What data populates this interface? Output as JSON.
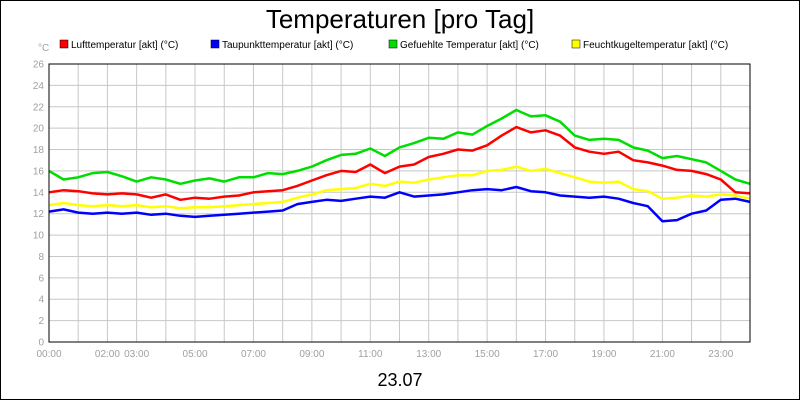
{
  "chart_data": {
    "type": "line",
    "title": "Temperaturen [pro Tag]",
    "ylabel": "°C",
    "xlabel": "23.07",
    "ylim": [
      0,
      26
    ],
    "yticks": [
      0,
      2,
      4,
      6,
      8,
      10,
      12,
      14,
      16,
      18,
      20,
      22,
      24,
      26
    ],
    "xlim": [
      0,
      24
    ],
    "xticks": [
      {
        "v": 0,
        "label": "00:00"
      },
      {
        "v": 2,
        "label": "02:00"
      },
      {
        "v": 3,
        "label": "03:00"
      },
      {
        "v": 5,
        "label": "05:00"
      },
      {
        "v": 7,
        "label": "07:00"
      },
      {
        "v": 9,
        "label": "09:00"
      },
      {
        "v": 11,
        "label": "11:00"
      },
      {
        "v": 13,
        "label": "13:00"
      },
      {
        "v": 15,
        "label": "15:00"
      },
      {
        "v": 17,
        "label": "17:00"
      },
      {
        "v": 19,
        "label": "19:00"
      },
      {
        "v": 21,
        "label": "21:00"
      },
      {
        "v": 23,
        "label": "23:00"
      }
    ],
    "grid": true,
    "legend": "top",
    "series": [
      {
        "name": "Lufttemperatur [akt] (°C)",
        "color": "#ff0000",
        "x": [
          0,
          0.5,
          1,
          1.5,
          2,
          2.5,
          3,
          3.5,
          4,
          4.5,
          5,
          5.5,
          6,
          6.5,
          7,
          7.5,
          8,
          8.5,
          9,
          9.5,
          10,
          10.5,
          11,
          11.5,
          12,
          12.5,
          13,
          13.5,
          14,
          14.5,
          15,
          15.5,
          16,
          16.5,
          17,
          17.5,
          18,
          18.5,
          19,
          19.5,
          20,
          20.5,
          21,
          21.5,
          22,
          22.5,
          23,
          23.5,
          24
        ],
        "y": [
          14.0,
          14.2,
          14.1,
          13.9,
          13.8,
          13.9,
          13.8,
          13.5,
          13.8,
          13.3,
          13.5,
          13.4,
          13.6,
          13.7,
          14.0,
          14.1,
          14.2,
          14.6,
          15.1,
          15.6,
          16.0,
          15.9,
          16.6,
          15.8,
          16.4,
          16.6,
          17.3,
          17.6,
          18.0,
          17.9,
          18.4,
          19.3,
          20.1,
          19.6,
          19.8,
          19.3,
          18.2,
          17.8,
          17.6,
          17.8,
          17.0,
          16.8,
          16.5,
          16.1,
          16.0,
          15.7,
          15.2,
          14.0,
          13.9
        ]
      },
      {
        "name": "Taupunkttemperatur [akt] (°C)",
        "color": "#0000ff",
        "x": [
          0,
          0.5,
          1,
          1.5,
          2,
          2.5,
          3,
          3.5,
          4,
          4.5,
          5,
          5.5,
          6,
          6.5,
          7,
          7.5,
          8,
          8.5,
          9,
          9.5,
          10,
          10.5,
          11,
          11.5,
          12,
          12.5,
          13,
          13.5,
          14,
          14.5,
          15,
          15.5,
          16,
          16.5,
          17,
          17.5,
          18,
          18.5,
          19,
          19.5,
          20,
          20.5,
          21,
          21.5,
          22,
          22.5,
          23,
          23.5,
          24
        ],
        "y": [
          12.2,
          12.4,
          12.1,
          12.0,
          12.1,
          12.0,
          12.1,
          11.9,
          12.0,
          11.8,
          11.7,
          11.8,
          11.9,
          12.0,
          12.1,
          12.2,
          12.3,
          12.9,
          13.1,
          13.3,
          13.2,
          13.4,
          13.6,
          13.5,
          14.0,
          13.6,
          13.7,
          13.8,
          14.0,
          14.2,
          14.3,
          14.2,
          14.5,
          14.1,
          14.0,
          13.7,
          13.6,
          13.5,
          13.6,
          13.4,
          13.0,
          12.7,
          11.3,
          11.4,
          12.0,
          12.3,
          13.3,
          13.4,
          13.1
        ]
      },
      {
        "name": "Gefuehlte Temperatur [akt] (°C)",
        "color": "#00dd00",
        "x": [
          0,
          0.5,
          1,
          1.5,
          2,
          2.5,
          3,
          3.5,
          4,
          4.5,
          5,
          5.5,
          6,
          6.5,
          7,
          7.5,
          8,
          8.5,
          9,
          9.5,
          10,
          10.5,
          11,
          11.5,
          12,
          12.5,
          13,
          13.5,
          14,
          14.5,
          15,
          15.5,
          16,
          16.5,
          17,
          17.5,
          18,
          18.5,
          19,
          19.5,
          20,
          20.5,
          21,
          21.5,
          22,
          22.5,
          23,
          23.5,
          24
        ],
        "y": [
          16.0,
          15.2,
          15.4,
          15.8,
          15.9,
          15.5,
          15.0,
          15.4,
          15.2,
          14.8,
          15.1,
          15.3,
          15.0,
          15.4,
          15.4,
          15.8,
          15.7,
          16.0,
          16.4,
          17.0,
          17.5,
          17.6,
          18.1,
          17.4,
          18.2,
          18.6,
          19.1,
          19.0,
          19.6,
          19.4,
          20.2,
          20.9,
          21.7,
          21.1,
          21.2,
          20.6,
          19.3,
          18.9,
          19.0,
          18.9,
          18.2,
          17.9,
          17.2,
          17.4,
          17.1,
          16.8,
          16.0,
          15.2,
          14.8
        ]
      },
      {
        "name": "Feuchtkugeltemperatur [akt] (°C)",
        "color": "#ffff00",
        "x": [
          0,
          0.5,
          1,
          1.5,
          2,
          2.5,
          3,
          3.5,
          4,
          4.5,
          5,
          5.5,
          6,
          6.5,
          7,
          7.5,
          8,
          8.5,
          9,
          9.5,
          10,
          10.5,
          11,
          11.5,
          12,
          12.5,
          13,
          13.5,
          14,
          14.5,
          15,
          15.5,
          16,
          16.5,
          17,
          17.5,
          18,
          18.5,
          19,
          19.5,
          20,
          20.5,
          21,
          21.5,
          22,
          22.5,
          23,
          23.5,
          24
        ],
        "y": [
          12.8,
          13.0,
          12.8,
          12.7,
          12.8,
          12.7,
          12.8,
          12.6,
          12.7,
          12.5,
          12.6,
          12.6,
          12.7,
          12.8,
          12.9,
          13.0,
          13.1,
          13.5,
          13.8,
          14.2,
          14.3,
          14.4,
          14.8,
          14.6,
          15.0,
          14.9,
          15.2,
          15.4,
          15.6,
          15.6,
          16.0,
          16.1,
          16.4,
          16.0,
          16.2,
          15.8,
          15.4,
          15.0,
          14.9,
          15.0,
          14.3,
          14.1,
          13.4,
          13.5,
          13.7,
          13.6,
          13.8,
          13.7,
          13.4
        ]
      }
    ]
  }
}
